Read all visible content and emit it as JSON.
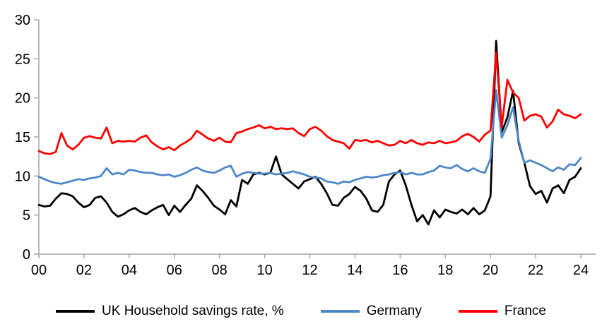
{
  "chart_data": {
    "type": "line",
    "title": "",
    "xlabel": "",
    "ylabel": "",
    "x_unit": "quarterly, 2000Q1 to 2024Q1",
    "x_tick_labels": [
      "00",
      "02",
      "04",
      "06",
      "08",
      "10",
      "12",
      "14",
      "16",
      "18",
      "20",
      "22",
      "24"
    ],
    "y_ticks": [
      0,
      5,
      10,
      15,
      20,
      25,
      30
    ],
    "ylim": [
      0,
      30
    ],
    "xlim_years": [
      2000,
      2024
    ],
    "grid": false,
    "legend_position": "bottom",
    "axis_color": "#a6a6a6",
    "tick_label_color": "#000000",
    "series": [
      {
        "name": "UK Household savings rate, %",
        "color": "#000000",
        "values": [
          6.3,
          6.1,
          6.2,
          7.1,
          7.8,
          7.7,
          7.4,
          6.6,
          6.0,
          6.3,
          7.2,
          7.4,
          6.6,
          5.4,
          4.8,
          5.1,
          5.6,
          5.9,
          5.4,
          5.1,
          5.6,
          6.0,
          6.3,
          5.0,
          6.2,
          5.4,
          6.3,
          7.1,
          8.8,
          8.1,
          7.2,
          6.2,
          5.7,
          5.1,
          6.9,
          6.1,
          9.5,
          9.0,
          10.2,
          10.4,
          10.2,
          10.4,
          12.5,
          10.2,
          9.6,
          9.0,
          8.4,
          9.3,
          9.6,
          9.9,
          9.0,
          7.8,
          6.3,
          6.2,
          7.2,
          7.7,
          8.6,
          8.1,
          7.1,
          5.6,
          5.4,
          6.3,
          9.3,
          10.2,
          10.7,
          8.8,
          6.3,
          4.2,
          5.0,
          3.8,
          5.6,
          4.7,
          5.7,
          5.4,
          5.2,
          5.7,
          5.1,
          5.9,
          5.1,
          5.6,
          7.4,
          27.3,
          15.6,
          17.5,
          20.9,
          14.2,
          11.7,
          8.7,
          7.7,
          8.1,
          6.6,
          8.4,
          8.8,
          7.8,
          9.5,
          9.9,
          11.0
        ]
      },
      {
        "name": "Germany",
        "color": "#4f86c6",
        "values": [
          9.9,
          9.6,
          9.3,
          9.1,
          9.0,
          9.2,
          9.4,
          9.6,
          9.5,
          9.7,
          9.8,
          10.0,
          11.0,
          10.2,
          10.4,
          10.2,
          10.8,
          10.7,
          10.5,
          10.4,
          10.4,
          10.2,
          10.1,
          10.2,
          9.9,
          10.1,
          10.4,
          10.8,
          11.1,
          10.7,
          10.5,
          10.4,
          10.7,
          11.1,
          11.3,
          9.9,
          10.3,
          10.5,
          10.4,
          10.3,
          10.3,
          10.4,
          10.2,
          10.3,
          10.4,
          10.6,
          10.4,
          10.2,
          9.9,
          9.8,
          9.7,
          9.3,
          9.2,
          9.0,
          9.3,
          9.2,
          9.5,
          9.7,
          9.9,
          9.8,
          9.9,
          10.1,
          10.2,
          10.4,
          10.5,
          10.2,
          10.4,
          10.2,
          10.2,
          10.5,
          10.7,
          11.3,
          11.1,
          11.0,
          11.4,
          10.9,
          10.6,
          11.0,
          10.6,
          10.4,
          12.2,
          21.0,
          14.9,
          16.5,
          18.8,
          14.5,
          11.7,
          12.0,
          11.7,
          11.4,
          11.0,
          10.6,
          11.1,
          10.8,
          11.5,
          11.4,
          12.3
        ]
      },
      {
        "name": "France",
        "color": "#ff0000",
        "values": [
          13.2,
          12.9,
          12.8,
          13.1,
          15.5,
          13.9,
          13.4,
          14.0,
          14.9,
          15.1,
          14.9,
          14.8,
          16.2,
          14.2,
          14.5,
          14.4,
          14.5,
          14.4,
          14.9,
          15.2,
          14.3,
          13.8,
          13.4,
          13.7,
          13.3,
          13.9,
          14.3,
          14.8,
          15.8,
          15.3,
          14.8,
          14.5,
          14.9,
          14.4,
          14.3,
          15.5,
          15.7,
          16.0,
          16.2,
          16.5,
          16.1,
          16.3,
          16.0,
          16.1,
          16.0,
          16.1,
          15.5,
          15.1,
          16.0,
          16.3,
          15.8,
          15.1,
          14.6,
          14.4,
          14.2,
          13.5,
          14.6,
          14.5,
          14.6,
          14.3,
          14.5,
          14.2,
          13.9,
          14.0,
          14.5,
          14.2,
          14.6,
          14.2,
          14.0,
          14.3,
          14.2,
          14.5,
          14.2,
          14.3,
          14.5,
          15.1,
          15.4,
          15.0,
          14.4,
          15.3,
          15.8,
          25.8,
          16.3,
          22.3,
          20.7,
          20.0,
          17.1,
          17.7,
          17.9,
          17.6,
          16.2,
          17.0,
          18.5,
          17.9,
          17.7,
          17.4,
          17.9
        ]
      }
    ]
  },
  "legend": {
    "items": [
      {
        "label": "UK Household savings rate, %"
      },
      {
        "label": "Germany"
      },
      {
        "label": "France"
      }
    ]
  }
}
